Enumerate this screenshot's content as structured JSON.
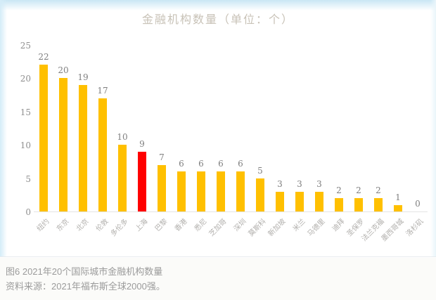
{
  "slide": {
    "title": "金融机构数量（单位：个）"
  },
  "chart_data": {
    "type": "bar",
    "title": "金融机构数量（单位：个）",
    "categories": [
      "纽约",
      "东京",
      "北京",
      "伦敦",
      "多伦多",
      "上海",
      "巴黎",
      "香港",
      "悉尼",
      "芝加哥",
      "深圳",
      "莫斯科",
      "新加坡",
      "米兰",
      "马德里",
      "迪拜",
      "圣保罗",
      "法兰克福",
      "墨西哥城",
      "洛杉矶"
    ],
    "values": [
      22,
      20,
      19,
      17,
      10,
      9,
      7,
      6,
      6,
      6,
      6,
      5,
      3,
      3,
      3,
      2,
      2,
      2,
      1,
      0
    ],
    "highlight_index": 5,
    "highlight_category": "上海",
    "xlabel": "",
    "ylabel": "",
    "ylim": [
      0,
      25
    ],
    "yticks": [
      0,
      5,
      10,
      15,
      20,
      25
    ],
    "grid": false,
    "legend": false,
    "data_labels": true,
    "colors": {
      "bar": "#FFC000",
      "highlight": "#FF0000",
      "data_label": "#7F7F7F",
      "axis_tick": "#8F8F8F",
      "category_label": "#B2B0AD",
      "title": "#C8C2B7",
      "slide_band": "#C9E6F4"
    }
  },
  "caption": {
    "figure_label": "图6  2021年20个国际城市金融机构数量",
    "source": "资料来源：2021年福布斯全球2000强。"
  }
}
